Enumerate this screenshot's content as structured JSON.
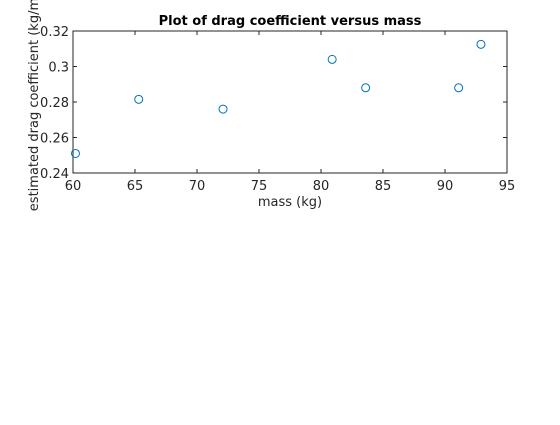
{
  "chart_data": {
    "type": "scatter",
    "title": "Plot of drag coefficient versus mass",
    "xlabel": "mass (kg)",
    "ylabel": "estimated drag coefficient (kg/m)",
    "xlim": [
      60,
      95
    ],
    "ylim": [
      0.24,
      0.32
    ],
    "xticks": [
      60,
      65,
      70,
      75,
      80,
      85,
      90,
      95
    ],
    "yticks": [
      0.24,
      0.26,
      0.28,
      0.3,
      0.32
    ],
    "ytick_labels": [
      "0.24",
      "0.26",
      "0.28",
      "0.3",
      "0.32"
    ],
    "grid": false,
    "marker": "open-circle",
    "marker_color": "#0072BD",
    "series": [
      {
        "x": [
          60.2,
          65.3,
          72.1,
          80.9,
          83.6,
          91.1,
          92.9
        ],
        "y": [
          0.251,
          0.2815,
          0.276,
          0.304,
          0.288,
          0.288,
          0.3125
        ]
      }
    ]
  }
}
